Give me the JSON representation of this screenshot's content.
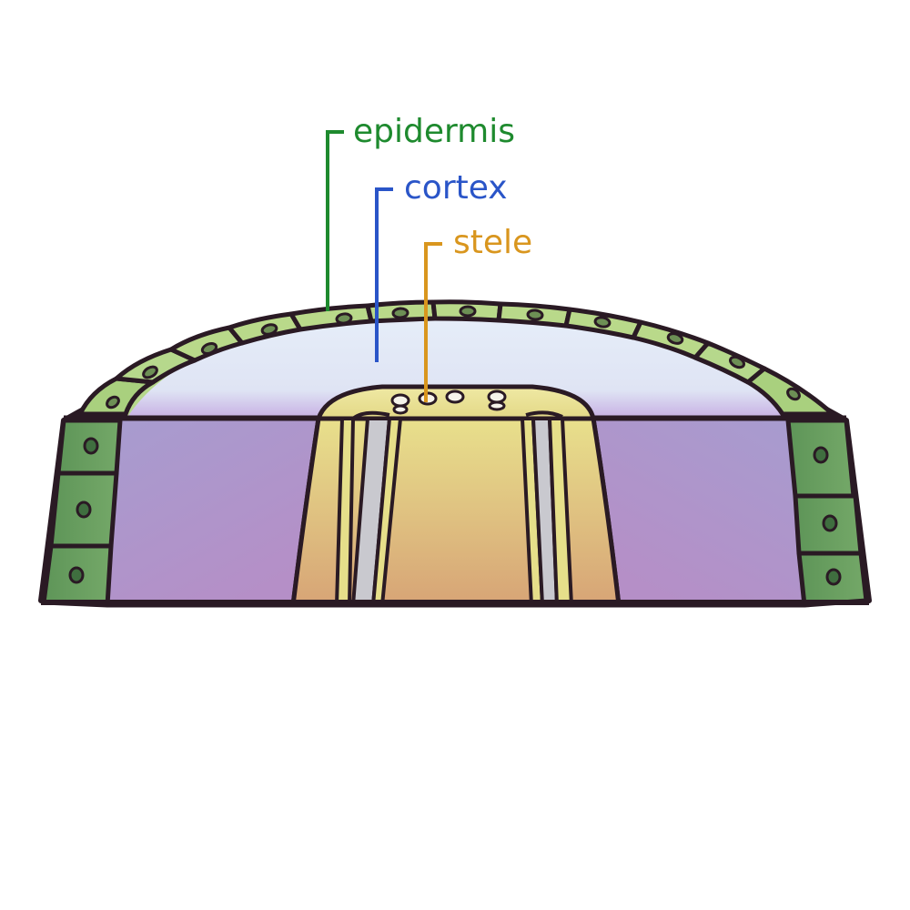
{
  "labels": {
    "epidermis": {
      "text": "epidermis",
      "color": "#1e8a2e"
    },
    "cortex": {
      "text": "cortex",
      "color": "#2a55c8"
    },
    "stele": {
      "text": "stele",
      "color": "#d9961e"
    }
  },
  "colors": {
    "outline": "#2a1a24",
    "epidermis_light": "#b9d98a",
    "epidermis_dark": "#5f9a5e",
    "cortex_top_light": "#e4ebf7",
    "cortex_top_edge": "#c9b4e6",
    "cortex_side_a": "#a69ccf",
    "cortex_side_b": "#b893c9",
    "stele_light": "#e6df8a",
    "stele_dark": "#d8a676",
    "xylem_strand": "#c9c9cf"
  }
}
